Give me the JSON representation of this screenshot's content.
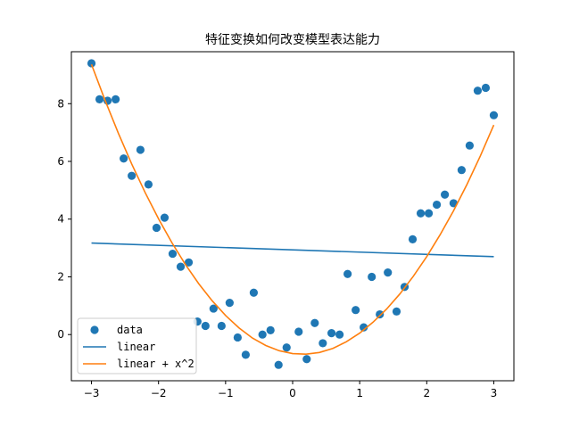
{
  "chart_data": {
    "type": "scatter",
    "title": "特征变换如何改变模型表达能力",
    "xlabel": "",
    "ylabel": "",
    "xlim": [
      -3.3,
      3.3
    ],
    "ylim": [
      -1.6,
      9.8
    ],
    "x_ticks": [
      -3,
      -2,
      -1,
      0,
      1,
      2,
      3
    ],
    "x_tick_labels": [
      "−3",
      "−2",
      "−1",
      "0",
      "1",
      "2",
      "3"
    ],
    "y_ticks": [
      0,
      2,
      4,
      6,
      8
    ],
    "y_tick_labels": [
      "0",
      "2",
      "4",
      "6",
      "8"
    ],
    "grid": false,
    "legend_position": "lower-left",
    "series": [
      {
        "name": "data",
        "kind": "scatter",
        "color": "#1f77b4",
        "points": [
          [
            -3.0,
            9.4
          ],
          [
            -2.88,
            8.15
          ],
          [
            -2.76,
            8.1
          ],
          [
            -2.64,
            8.15
          ],
          [
            -2.52,
            6.1
          ],
          [
            -2.4,
            5.5
          ],
          [
            -2.27,
            6.4
          ],
          [
            -2.15,
            5.2
          ],
          [
            -2.03,
            3.7
          ],
          [
            -1.91,
            4.05
          ],
          [
            -1.79,
            2.8
          ],
          [
            -1.67,
            2.35
          ],
          [
            -1.55,
            2.5
          ],
          [
            -1.42,
            0.45
          ],
          [
            -1.3,
            0.3
          ],
          [
            -1.18,
            0.9
          ],
          [
            -1.06,
            0.3
          ],
          [
            -0.94,
            1.1
          ],
          [
            -0.82,
            -0.1
          ],
          [
            -0.7,
            -0.7
          ],
          [
            -0.58,
            1.45
          ],
          [
            -0.45,
            0.0
          ],
          [
            -0.33,
            0.15
          ],
          [
            -0.21,
            -1.05
          ],
          [
            -0.09,
            -0.45
          ],
          [
            0.09,
            0.1
          ],
          [
            0.21,
            -0.85
          ],
          [
            0.33,
            0.4
          ],
          [
            0.45,
            -0.3
          ],
          [
            0.58,
            0.05
          ],
          [
            0.7,
            0.0
          ],
          [
            0.82,
            2.1
          ],
          [
            0.94,
            0.85
          ],
          [
            1.06,
            0.25
          ],
          [
            1.18,
            2.0
          ],
          [
            1.3,
            0.7
          ],
          [
            1.42,
            2.15
          ],
          [
            1.55,
            0.8
          ],
          [
            1.67,
            1.65
          ],
          [
            1.79,
            3.3
          ],
          [
            1.91,
            4.2
          ],
          [
            2.03,
            4.2
          ],
          [
            2.15,
            4.5
          ],
          [
            2.27,
            4.85
          ],
          [
            2.4,
            4.55
          ],
          [
            2.52,
            5.7
          ],
          [
            2.64,
            6.55
          ],
          [
            2.76,
            8.45
          ],
          [
            2.88,
            8.55
          ],
          [
            3.0,
            7.6
          ]
        ]
      },
      {
        "name": "linear",
        "kind": "line",
        "color": "#1f77b4",
        "x": [
          -3,
          3
        ],
        "y": [
          3.17,
          2.7
        ]
      },
      {
        "name": "linear + x^2",
        "kind": "line",
        "color": "#ff7f0e",
        "x": [
          -3.0,
          -2.8,
          -2.6,
          -2.4,
          -2.2,
          -2.0,
          -1.8,
          -1.6,
          -1.4,
          -1.2,
          -1.0,
          -0.8,
          -0.6,
          -0.4,
          -0.2,
          0.0,
          0.2,
          0.4,
          0.6,
          0.8,
          1.0,
          1.2,
          1.4,
          1.6,
          1.8,
          2.0,
          2.2,
          2.4,
          2.6,
          2.8,
          3.0
        ],
        "y": [
          9.36,
          8.13,
          6.98,
          5.91,
          4.92,
          4.01,
          3.18,
          2.43,
          1.76,
          1.17,
          0.66,
          0.23,
          -0.12,
          -0.38,
          -0.56,
          -0.66,
          -0.68,
          -0.62,
          -0.48,
          -0.25,
          0.05,
          0.43,
          0.88,
          1.41,
          2.02,
          2.7,
          3.46,
          4.29,
          5.2,
          6.19,
          7.26
        ]
      }
    ]
  }
}
